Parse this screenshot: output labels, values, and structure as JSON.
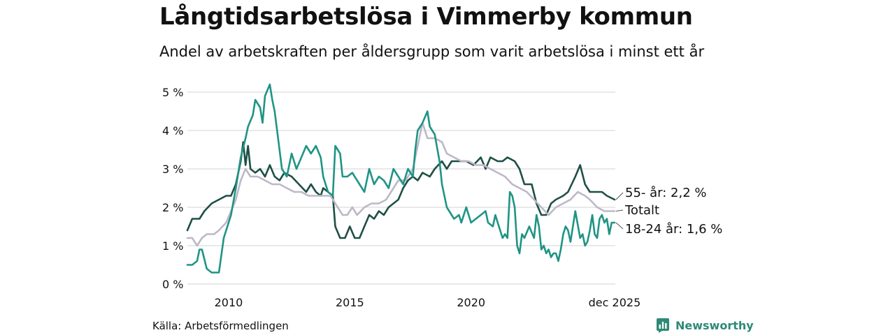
{
  "title": "Långtidsarbetslösa i Vimmerby kommun",
  "subtitle": "Andel av arbetskraften per åldersgrupp som varit arbetslösa i minst ett år",
  "source": "Källa: Arbetsförmedlingen",
  "brand": "Newsworthy",
  "colors": {
    "s55": "#1f4f45",
    "total": "#bdb8c8",
    "s1824": "#1f9484",
    "grid": "#e2e2e2",
    "brand": "#2e8a76"
  },
  "chart_data": {
    "type": "line",
    "title": "Långtidsarbetslösa i Vimmerby kommun",
    "xlabel": "",
    "ylabel": "",
    "xlim": [
      2008.3,
      2025.95
    ],
    "ylim": [
      0,
      5
    ],
    "y_ticks": [
      0,
      1,
      2,
      3,
      4,
      5
    ],
    "y_tick_labels": [
      "0 %",
      "1 %",
      "2 %",
      "3 %",
      "4 %",
      "5 %"
    ],
    "x_ticks": [
      2010,
      2015,
      2020,
      2025.92
    ],
    "x_tick_labels": [
      "2010",
      "2015",
      "2020",
      "dec 2025"
    ],
    "series": [
      {
        "name": "55- år",
        "label": "55- år: 2,2 %",
        "last_value": 2.2,
        "color": "#1f4f45",
        "points": [
          [
            2008.3,
            1.4
          ],
          [
            2008.5,
            1.7
          ],
          [
            2008.8,
            1.7
          ],
          [
            2009.0,
            1.9
          ],
          [
            2009.3,
            2.1
          ],
          [
            2009.6,
            2.2
          ],
          [
            2009.9,
            2.3
          ],
          [
            2010.1,
            2.3
          ],
          [
            2010.3,
            2.6
          ],
          [
            2010.5,
            3.2
          ],
          [
            2010.6,
            3.7
          ],
          [
            2010.7,
            3.1
          ],
          [
            2010.8,
            3.6
          ],
          [
            2010.9,
            3.0
          ],
          [
            2011.1,
            2.9
          ],
          [
            2011.3,
            3.0
          ],
          [
            2011.5,
            2.8
          ],
          [
            2011.7,
            3.1
          ],
          [
            2011.9,
            2.8
          ],
          [
            2012.1,
            2.7
          ],
          [
            2012.3,
            2.9
          ],
          [
            2012.6,
            2.8
          ],
          [
            2012.9,
            2.6
          ],
          [
            2013.2,
            2.4
          ],
          [
            2013.4,
            2.6
          ],
          [
            2013.6,
            2.4
          ],
          [
            2013.8,
            2.3
          ],
          [
            2013.9,
            2.5
          ],
          [
            2014.1,
            2.4
          ],
          [
            2014.3,
            2.3
          ],
          [
            2014.4,
            1.5
          ],
          [
            2014.6,
            1.2
          ],
          [
            2014.8,
            1.2
          ],
          [
            2015.0,
            1.5
          ],
          [
            2015.2,
            1.2
          ],
          [
            2015.4,
            1.2
          ],
          [
            2015.6,
            1.5
          ],
          [
            2015.8,
            1.8
          ],
          [
            2016.0,
            1.7
          ],
          [
            2016.2,
            1.9
          ],
          [
            2016.4,
            1.8
          ],
          [
            2016.6,
            2.0
          ],
          [
            2016.8,
            2.1
          ],
          [
            2017.0,
            2.2
          ],
          [
            2017.2,
            2.5
          ],
          [
            2017.4,
            2.7
          ],
          [
            2017.6,
            2.8
          ],
          [
            2017.8,
            2.7
          ],
          [
            2018.0,
            2.9
          ],
          [
            2018.3,
            2.8
          ],
          [
            2018.5,
            3.0
          ],
          [
            2018.8,
            3.2
          ],
          [
            2019.0,
            3.0
          ],
          [
            2019.2,
            3.2
          ],
          [
            2019.5,
            3.2
          ],
          [
            2019.8,
            3.2
          ],
          [
            2020.1,
            3.1
          ],
          [
            2020.4,
            3.3
          ],
          [
            2020.6,
            3.0
          ],
          [
            2020.8,
            3.3
          ],
          [
            2021.1,
            3.2
          ],
          [
            2021.3,
            3.2
          ],
          [
            2021.5,
            3.3
          ],
          [
            2021.8,
            3.2
          ],
          [
            2022.0,
            3.0
          ],
          [
            2022.2,
            2.6
          ],
          [
            2022.5,
            2.6
          ],
          [
            2022.7,
            2.1
          ],
          [
            2022.9,
            1.8
          ],
          [
            2023.1,
            1.8
          ],
          [
            2023.3,
            2.1
          ],
          [
            2023.5,
            2.2
          ],
          [
            2023.8,
            2.3
          ],
          [
            2024.0,
            2.4
          ],
          [
            2024.3,
            2.8
          ],
          [
            2024.5,
            3.1
          ],
          [
            2024.7,
            2.6
          ],
          [
            2024.9,
            2.4
          ],
          [
            2025.1,
            2.4
          ],
          [
            2025.4,
            2.4
          ],
          [
            2025.6,
            2.3
          ],
          [
            2025.92,
            2.2
          ]
        ]
      },
      {
        "name": "Totalt",
        "label": "Totalt",
        "last_value": 1.9,
        "color": "#bdb8c8",
        "points": [
          [
            2008.3,
            1.2
          ],
          [
            2008.5,
            1.2
          ],
          [
            2008.7,
            1.0
          ],
          [
            2008.9,
            1.2
          ],
          [
            2009.1,
            1.3
          ],
          [
            2009.4,
            1.3
          ],
          [
            2009.6,
            1.4
          ],
          [
            2009.9,
            1.6
          ],
          [
            2010.1,
            1.9
          ],
          [
            2010.3,
            2.2
          ],
          [
            2010.5,
            2.7
          ],
          [
            2010.7,
            3.0
          ],
          [
            2010.9,
            2.8
          ],
          [
            2011.2,
            2.8
          ],
          [
            2011.5,
            2.7
          ],
          [
            2011.8,
            2.6
          ],
          [
            2012.1,
            2.6
          ],
          [
            2012.4,
            2.5
          ],
          [
            2012.7,
            2.4
          ],
          [
            2013.0,
            2.4
          ],
          [
            2013.3,
            2.3
          ],
          [
            2013.6,
            2.3
          ],
          [
            2013.9,
            2.3
          ],
          [
            2014.2,
            2.3
          ],
          [
            2014.5,
            2.0
          ],
          [
            2014.7,
            1.8
          ],
          [
            2014.9,
            1.8
          ],
          [
            2015.1,
            2.0
          ],
          [
            2015.3,
            1.8
          ],
          [
            2015.6,
            2.0
          ],
          [
            2015.9,
            2.1
          ],
          [
            2016.2,
            2.1
          ],
          [
            2016.5,
            2.2
          ],
          [
            2016.8,
            2.5
          ],
          [
            2017.0,
            2.7
          ],
          [
            2017.3,
            2.7
          ],
          [
            2017.6,
            3.0
          ],
          [
            2017.8,
            3.6
          ],
          [
            2018.0,
            4.2
          ],
          [
            2018.2,
            3.8
          ],
          [
            2018.5,
            3.8
          ],
          [
            2018.8,
            3.7
          ],
          [
            2019.0,
            3.4
          ],
          [
            2019.3,
            3.3
          ],
          [
            2019.6,
            3.2
          ],
          [
            2019.9,
            3.2
          ],
          [
            2020.2,
            3.1
          ],
          [
            2020.5,
            3.1
          ],
          [
            2020.8,
            3.0
          ],
          [
            2021.1,
            2.9
          ],
          [
            2021.4,
            2.8
          ],
          [
            2021.7,
            2.6
          ],
          [
            2022.0,
            2.5
          ],
          [
            2022.3,
            2.4
          ],
          [
            2022.6,
            2.2
          ],
          [
            2022.9,
            2.0
          ],
          [
            2023.2,
            1.8
          ],
          [
            2023.5,
            2.0
          ],
          [
            2023.8,
            2.1
          ],
          [
            2024.1,
            2.2
          ],
          [
            2024.4,
            2.4
          ],
          [
            2024.7,
            2.3
          ],
          [
            2024.9,
            2.2
          ],
          [
            2025.2,
            2.0
          ],
          [
            2025.5,
            1.9
          ],
          [
            2025.92,
            1.9
          ]
        ]
      },
      {
        "name": "18-24 år",
        "label": "18-24 år: 1,6 %",
        "last_value": 1.6,
        "color": "#1f9484",
        "points": [
          [
            2008.3,
            0.5
          ],
          [
            2008.5,
            0.5
          ],
          [
            2008.7,
            0.6
          ],
          [
            2008.8,
            0.9
          ],
          [
            2008.9,
            0.9
          ],
          [
            2009.1,
            0.4
          ],
          [
            2009.3,
            0.3
          ],
          [
            2009.6,
            0.3
          ],
          [
            2009.8,
            1.2
          ],
          [
            2010.1,
            1.8
          ],
          [
            2010.3,
            2.5
          ],
          [
            2010.5,
            3.3
          ],
          [
            2010.7,
            3.8
          ],
          [
            2010.8,
            4.1
          ],
          [
            2011.0,
            4.4
          ],
          [
            2011.1,
            4.8
          ],
          [
            2011.3,
            4.6
          ],
          [
            2011.4,
            4.2
          ],
          [
            2011.5,
            4.9
          ],
          [
            2011.7,
            5.2
          ],
          [
            2011.8,
            4.8
          ],
          [
            2011.9,
            4.5
          ],
          [
            2012.0,
            4.0
          ],
          [
            2012.2,
            3.0
          ],
          [
            2012.4,
            2.8
          ],
          [
            2012.6,
            3.4
          ],
          [
            2012.8,
            3.0
          ],
          [
            2013.0,
            3.3
          ],
          [
            2013.2,
            3.6
          ],
          [
            2013.4,
            3.4
          ],
          [
            2013.6,
            3.6
          ],
          [
            2013.8,
            3.3
          ],
          [
            2013.9,
            2.8
          ],
          [
            2014.1,
            2.4
          ],
          [
            2014.3,
            2.3
          ],
          [
            2014.4,
            3.6
          ],
          [
            2014.6,
            3.4
          ],
          [
            2014.7,
            2.8
          ],
          [
            2014.9,
            2.8
          ],
          [
            2015.1,
            2.9
          ],
          [
            2015.4,
            2.6
          ],
          [
            2015.6,
            2.4
          ],
          [
            2015.8,
            3.0
          ],
          [
            2016.0,
            2.6
          ],
          [
            2016.2,
            2.8
          ],
          [
            2016.4,
            2.7
          ],
          [
            2016.6,
            2.5
          ],
          [
            2016.8,
            3.0
          ],
          [
            2017.0,
            2.8
          ],
          [
            2017.2,
            2.6
          ],
          [
            2017.4,
            3.0
          ],
          [
            2017.6,
            2.8
          ],
          [
            2017.7,
            3.5
          ],
          [
            2017.8,
            4.0
          ],
          [
            2017.9,
            4.1
          ],
          [
            2018.0,
            4.2
          ],
          [
            2018.2,
            4.5
          ],
          [
            2018.3,
            4.1
          ],
          [
            2018.5,
            3.9
          ],
          [
            2018.7,
            3.2
          ],
          [
            2018.8,
            2.6
          ],
          [
            2019.0,
            2.0
          ],
          [
            2019.2,
            1.8
          ],
          [
            2019.3,
            1.7
          ],
          [
            2019.5,
            1.8
          ],
          [
            2019.6,
            1.6
          ],
          [
            2019.8,
            2.0
          ],
          [
            2020.0,
            1.6
          ],
          [
            2020.2,
            1.7
          ],
          [
            2020.4,
            1.8
          ],
          [
            2020.6,
            1.9
          ],
          [
            2020.7,
            1.6
          ],
          [
            2020.9,
            1.5
          ],
          [
            2021.0,
            1.8
          ],
          [
            2021.1,
            1.6
          ],
          [
            2021.3,
            1.2
          ],
          [
            2021.4,
            1.3
          ],
          [
            2021.5,
            1.2
          ],
          [
            2021.6,
            2.4
          ],
          [
            2021.7,
            2.3
          ],
          [
            2021.8,
            2.0
          ],
          [
            2021.9,
            1.0
          ],
          [
            2022.0,
            0.8
          ],
          [
            2022.1,
            1.3
          ],
          [
            2022.2,
            1.2
          ],
          [
            2022.4,
            1.5
          ],
          [
            2022.6,
            1.2
          ],
          [
            2022.7,
            1.8
          ],
          [
            2022.8,
            1.5
          ],
          [
            2022.9,
            0.9
          ],
          [
            2023.0,
            1.0
          ],
          [
            2023.1,
            0.8
          ],
          [
            2023.2,
            0.9
          ],
          [
            2023.3,
            0.7
          ],
          [
            2023.4,
            0.8
          ],
          [
            2023.5,
            0.8
          ],
          [
            2023.6,
            0.6
          ],
          [
            2023.7,
            0.9
          ],
          [
            2023.8,
            1.3
          ],
          [
            2023.9,
            1.5
          ],
          [
            2024.0,
            1.4
          ],
          [
            2024.1,
            1.1
          ],
          [
            2024.3,
            1.9
          ],
          [
            2024.5,
            1.2
          ],
          [
            2024.6,
            1.3
          ],
          [
            2024.7,
            1.0
          ],
          [
            2024.8,
            1.1
          ],
          [
            2024.9,
            1.4
          ],
          [
            2025.0,
            1.8
          ],
          [
            2025.1,
            1.3
          ],
          [
            2025.2,
            1.2
          ],
          [
            2025.3,
            1.7
          ],
          [
            2025.4,
            1.8
          ],
          [
            2025.5,
            1.6
          ],
          [
            2025.6,
            1.7
          ],
          [
            2025.7,
            1.3
          ],
          [
            2025.8,
            1.6
          ],
          [
            2025.92,
            1.6
          ]
        ]
      }
    ]
  }
}
